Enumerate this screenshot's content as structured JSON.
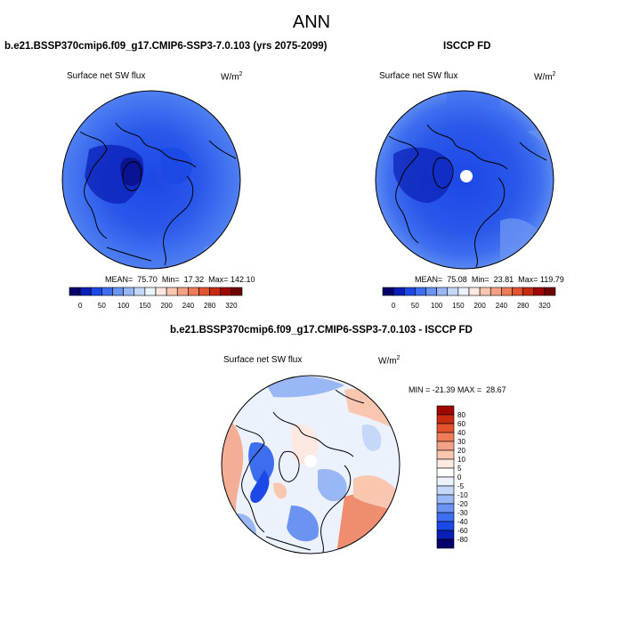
{
  "main_title": "ANN",
  "units_base": "W/m",
  "units_exp": "2",
  "chart_data": [
    {
      "type": "heatmap",
      "projection": "north-polar-stereographic",
      "title": "b.e21.BSSP370cmip6.f09_g17.CMIP6-SSP3-7.0.103 (yrs 2075-2099)",
      "variable": "Surface net SW flux",
      "units": "W/m2",
      "mean_label": "MEAN=",
      "mean": "75.70",
      "min_label": "Min=",
      "min": "17.32",
      "max_label": "Max=",
      "max": "142.10",
      "colorbar_orientation": "horizontal",
      "colorbar_levels": [
        0,
        25,
        50,
        75,
        100,
        125,
        150,
        175,
        200,
        220,
        240,
        260,
        280,
        300,
        320
      ],
      "colorbar_labels": [
        "0",
        "50",
        "100",
        "150",
        "200",
        "240",
        "280",
        "320"
      ],
      "colorbar_colors": [
        "#08006a",
        "#0a1fb5",
        "#1b48e6",
        "#3d6ef0",
        "#6a93f2",
        "#99b6f5",
        "#c6d8fa",
        "#ecf2fc",
        "#fde9e1",
        "#f9c6b0",
        "#f4a283",
        "#ef7b57",
        "#e3532f",
        "#c72b10",
        "#9e0800",
        "#6e0000"
      ]
    },
    {
      "type": "heatmap",
      "projection": "north-polar-stereographic",
      "title": "ISCCP FD",
      "variable": "Surface net SW flux",
      "units": "W/m2",
      "mean_label": "MEAN=",
      "mean": "75.08",
      "min_label": "Min=",
      "min": "23.81",
      "max_label": "Max=",
      "max": "119.79",
      "colorbar_orientation": "horizontal",
      "colorbar_levels": [
        0,
        25,
        50,
        75,
        100,
        125,
        150,
        175,
        200,
        220,
        240,
        260,
        280,
        300,
        320
      ],
      "colorbar_labels": [
        "0",
        "50",
        "100",
        "150",
        "200",
        "240",
        "280",
        "320"
      ],
      "colorbar_colors": [
        "#08006a",
        "#0a1fb5",
        "#1b48e6",
        "#3d6ef0",
        "#6a93f2",
        "#99b6f5",
        "#c6d8fa",
        "#ecf2fc",
        "#fde9e1",
        "#f9c6b0",
        "#f4a283",
        "#ef7b57",
        "#e3532f",
        "#c72b10",
        "#9e0800",
        "#6e0000"
      ]
    },
    {
      "type": "heatmap",
      "projection": "north-polar-stereographic",
      "title": "b.e21.BSSP370cmip6.f09_g17.CMIP6-SSP3-7.0.103 - ISCCP FD",
      "variable": "Surface net SW flux",
      "units": "W/m2",
      "min_label": "MIN =",
      "min": "-21.39",
      "max_label": "MAX =",
      "max": "28.67",
      "colorbar_orientation": "vertical",
      "colorbar_levels": [
        80,
        60,
        40,
        30,
        20,
        10,
        5,
        0,
        -5,
        -10,
        -20,
        -30,
        -40,
        -60,
        -80
      ],
      "colorbar_labels": [
        "80",
        "60",
        "40",
        "30",
        "20",
        "10",
        "5",
        "0",
        "-5",
        "-10",
        "-20",
        "-30",
        "-40",
        "-60",
        "-80"
      ],
      "colorbar_colors": [
        "#9e0800",
        "#c72b10",
        "#e3532f",
        "#ef7b57",
        "#f4a283",
        "#f9c6b0",
        "#fde9e1",
        "#ffffff",
        "#ecf2fc",
        "#c6d8fa",
        "#99b6f5",
        "#6a93f2",
        "#3d6ef0",
        "#1b48e6",
        "#0a1fb5",
        "#08006a"
      ]
    }
  ]
}
